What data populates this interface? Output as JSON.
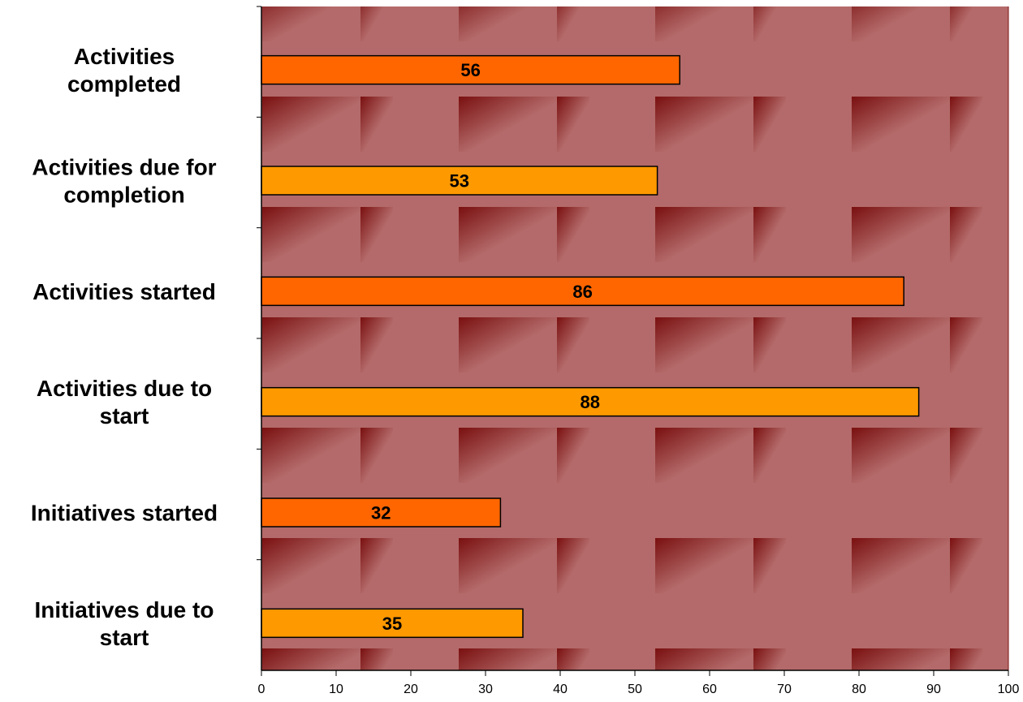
{
  "chart_data": {
    "type": "bar",
    "orientation": "horizontal",
    "categories": [
      [
        "Activities",
        "completed"
      ],
      [
        "Activities due for",
        "completion"
      ],
      [
        "Activities started"
      ],
      [
        "Activities due to",
        "start"
      ],
      [
        "Initiatives started"
      ],
      [
        "Initiatives due to",
        "start"
      ]
    ],
    "values": [
      56,
      53,
      86,
      88,
      32,
      35
    ],
    "bar_colors": [
      "#ff6600",
      "#ff9900",
      "#ff6600",
      "#ff9900",
      "#ff6600",
      "#ff9900"
    ],
    "xlim": [
      0,
      100
    ],
    "x_ticks": [
      0,
      10,
      20,
      30,
      40,
      50,
      60,
      70,
      80,
      90,
      100
    ],
    "data_labels": true,
    "grid": false,
    "background": {
      "base_color": "#b46a6a",
      "accent_color": "#7a1010",
      "pattern": "diagonal-gradient-tiles"
    }
  }
}
